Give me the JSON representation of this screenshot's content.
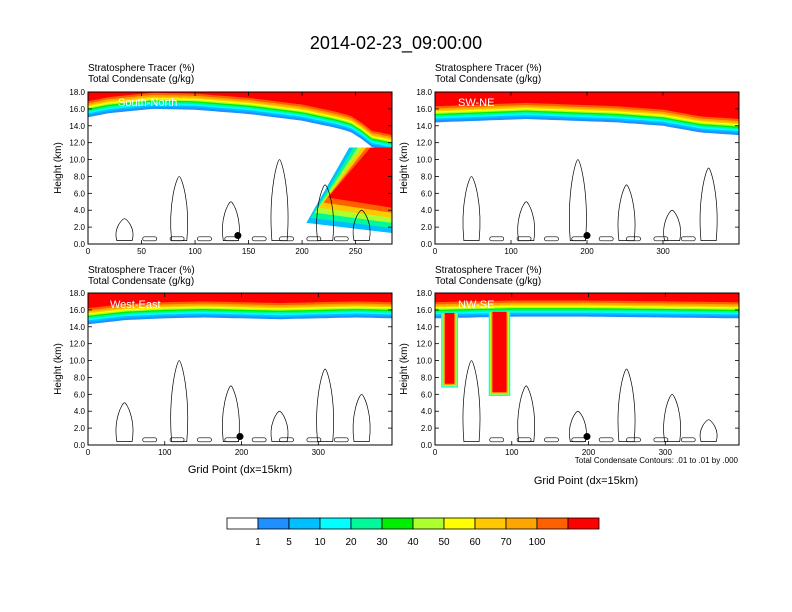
{
  "figure": {
    "title": "2014-02-23_09:00:00",
    "contour_note": "Total Condensate Contours: .01 to .01 by .000"
  },
  "colors": {
    "levels": [
      "#ffffff",
      "#1e90ff",
      "#00bfff",
      "#00ffff",
      "#00fa9a",
      "#00ee00",
      "#adff2f",
      "#ffff00",
      "#ffc800",
      "#ffa500",
      "#ff6000",
      "#ff0000"
    ],
    "contour": "#000000"
  },
  "colorbar": {
    "labels": [
      "1",
      "5",
      "10",
      "20",
      "30",
      "40",
      "50",
      "60",
      "70",
      "100"
    ]
  },
  "chart_data": [
    {
      "type": "heatmap",
      "id": "south-north",
      "title_lines": [
        "Stratosphere Tracer   (%)",
        "Total Condensate   (g/kg)"
      ],
      "region_label": "South-North",
      "xlabel": "",
      "ylabel": "Height (km)",
      "xlim": [
        0,
        284
      ],
      "ylim": [
        0,
        18
      ],
      "xticks": [
        0,
        50,
        100,
        150,
        200,
        250
      ],
      "yticks": [
        0,
        2,
        4,
        6,
        8,
        10,
        12,
        14,
        16,
        18
      ],
      "tropopause_profile": [
        [
          0,
          15.0
        ],
        [
          20,
          15.5
        ],
        [
          60,
          16.0
        ],
        [
          100,
          15.9
        ],
        [
          150,
          15.4
        ],
        [
          200,
          14.6
        ],
        [
          230,
          13.8
        ],
        [
          245,
          13.3
        ],
        [
          255,
          12.5
        ],
        [
          265,
          11.5
        ],
        [
          284,
          11.0
        ]
      ],
      "intrusion": {
        "x_top": 268,
        "x_bottom": 228,
        "y_bottom": 2.5
      },
      "marker": {
        "x": 140,
        "y": 1.0
      }
    },
    {
      "type": "heatmap",
      "id": "sw-ne",
      "title_lines": [
        "Stratosphere Tracer   (%)",
        "Total Condensate   (g/kg)"
      ],
      "region_label": "SW-NE",
      "xlabel": "",
      "ylabel": "Height (km)",
      "xlim": [
        0,
        400
      ],
      "ylim": [
        0,
        18
      ],
      "xticks": [
        0,
        100,
        200,
        300
      ],
      "yticks": [
        0,
        2,
        4,
        6,
        8,
        10,
        12,
        14,
        16,
        18
      ],
      "tropopause_profile": [
        [
          0,
          14.4
        ],
        [
          60,
          14.6
        ],
        [
          120,
          14.8
        ],
        [
          180,
          14.6
        ],
        [
          240,
          14.4
        ],
        [
          300,
          14.0
        ],
        [
          350,
          13.2
        ],
        [
          400,
          12.9
        ]
      ],
      "marker": {
        "x": 200,
        "y": 1.0
      }
    },
    {
      "type": "heatmap",
      "id": "west-east",
      "title_lines": [
        "Stratosphere Tracer   (%)",
        "Total Condensate   (g/kg)"
      ],
      "region_label": "West-East",
      "xlabel": "Grid Point (dx=15km)",
      "ylabel": "Height (km)",
      "xlim": [
        0,
        396
      ],
      "ylim": [
        0,
        18
      ],
      "xticks": [
        0,
        100,
        200,
        300
      ],
      "yticks": [
        0,
        2,
        4,
        6,
        8,
        10,
        12,
        14,
        16,
        18
      ],
      "tropopause_profile": [
        [
          0,
          14.3
        ],
        [
          50,
          14.8
        ],
        [
          100,
          15.0
        ],
        [
          150,
          15.1
        ],
        [
          200,
          15.0
        ],
        [
          250,
          14.9
        ],
        [
          300,
          15.0
        ],
        [
          350,
          15.1
        ],
        [
          396,
          15.0
        ]
      ],
      "marker": {
        "x": 198,
        "y": 1.0
      }
    },
    {
      "type": "heatmap",
      "id": "nw-se",
      "title_lines": [
        "Stratosphere Tracer   (%)",
        "Total Condensate   (g/kg)"
      ],
      "region_label": "NW-SE",
      "xlabel": "Grid Point (dx=15km)",
      "ylabel": "Height (km)",
      "xlim": [
        0,
        396
      ],
      "ylim": [
        0,
        18
      ],
      "xticks": [
        0,
        100,
        200,
        300
      ],
      "yticks": [
        0,
        2,
        4,
        6,
        8,
        10,
        12,
        14,
        16,
        18
      ],
      "tropopause_profile": [
        [
          0,
          15.0
        ],
        [
          100,
          15.2
        ],
        [
          200,
          15.2
        ],
        [
          300,
          15.1
        ],
        [
          396,
          15.0
        ]
      ],
      "folds": [
        {
          "x_left": 8,
          "x_right": 30,
          "y_bottom": 6.8
        },
        {
          "x_left": 70,
          "x_right": 98,
          "y_bottom": 5.8
        }
      ],
      "marker": {
        "x": 198,
        "y": 1.0
      }
    }
  ]
}
